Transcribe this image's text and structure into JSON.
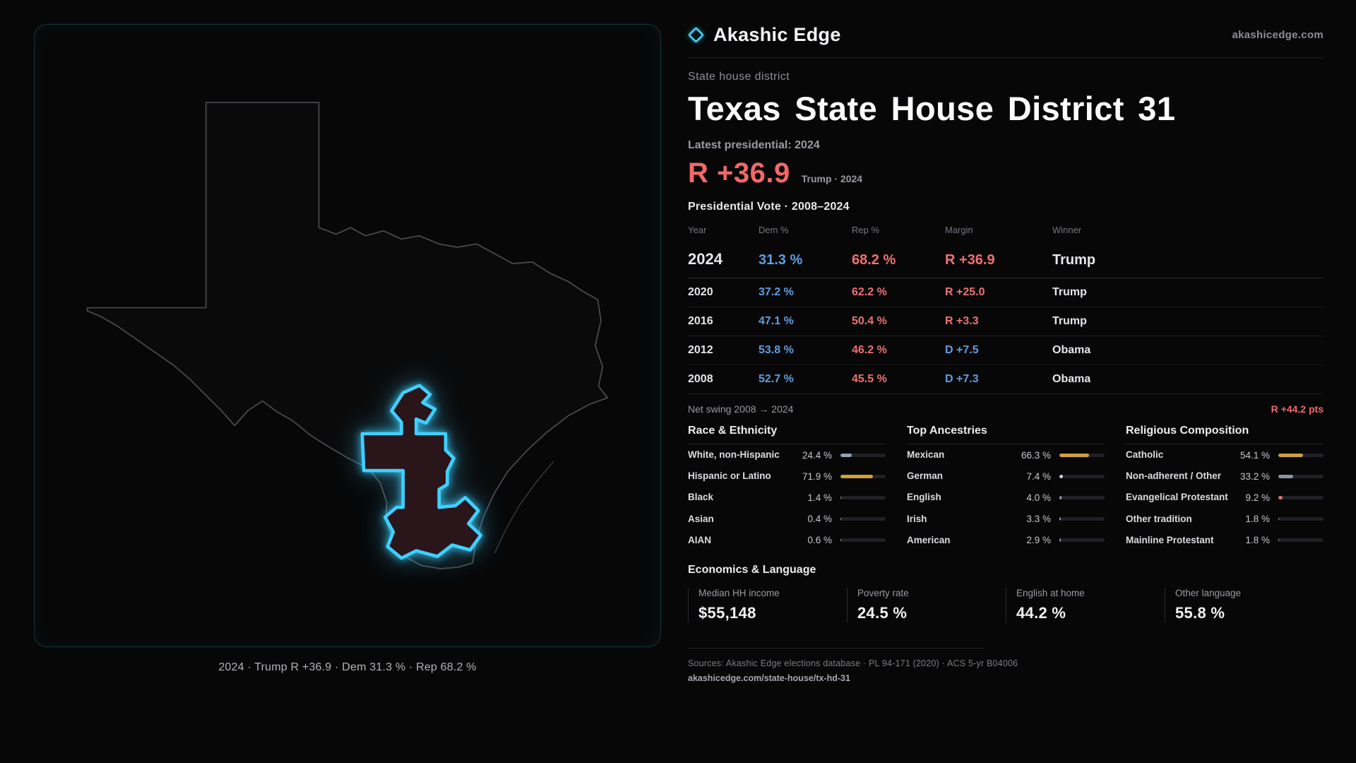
{
  "brand": {
    "name": "Akashic Edge",
    "domain": "akashicedge.com"
  },
  "accents": {
    "republican_red": "#f26868",
    "democrat_blue": "#5f9fe0",
    "district_cyan": "#3fd0ff",
    "bar_gold": "#cfa13b"
  },
  "map": {
    "caption": "2024 · Trump R +36.9 · Dem 31.3 % · Rep 68.2 %"
  },
  "page": {
    "kicker": "State house district",
    "title": "Texas State House District 31",
    "latest_label": "Latest presidential: 2024",
    "headline_margin": "R +36.9",
    "headline_context": "Trump · 2024",
    "table_title": "Presidential Vote · 2008–2024",
    "net_swing_label": "Net swing 2008 → 2024",
    "net_swing_value": "R +44.2 pts"
  },
  "vote_table": {
    "columns": [
      "Year",
      "Dem %",
      "Rep %",
      "Margin",
      "Winner"
    ],
    "rows": [
      {
        "year": "2024",
        "dem": "31.3 %",
        "rep": "68.2 %",
        "margin": "R +36.9",
        "winner": "Trump",
        "emphasis": true
      },
      {
        "year": "2020",
        "dem": "37.2 %",
        "rep": "62.2 %",
        "margin": "R +25.0",
        "winner": "Trump",
        "emphasis": false
      },
      {
        "year": "2016",
        "dem": "47.1 %",
        "rep": "50.4 %",
        "margin": "R +3.3",
        "winner": "Trump",
        "emphasis": false
      },
      {
        "year": "2012",
        "dem": "53.8 %",
        "rep": "46.2 %",
        "margin": "D +7.5",
        "winner": "Obama",
        "emphasis": false
      },
      {
        "year": "2008",
        "dem": "52.7 %",
        "rep": "45.5 %",
        "margin": "D +7.3",
        "winner": "Obama",
        "emphasis": false
      }
    ]
  },
  "demographics": [
    {
      "title": "Race & Ethnicity",
      "items": [
        {
          "label": "White, non-Hispanic",
          "value": "24.4 %",
          "pct": 24.4,
          "color": "#93a0b5"
        },
        {
          "label": "Hispanic or Latino",
          "value": "71.9 %",
          "pct": 71.9,
          "color": "#cfa13b"
        },
        {
          "label": "Black",
          "value": "1.4 %",
          "pct": 1.4,
          "color": "#9aa3b2"
        },
        {
          "label": "Asian",
          "value": "0.4 %",
          "pct": 0.4,
          "color": "#9aa3b2"
        },
        {
          "label": "AIAN",
          "value": "0.6 %",
          "pct": 0.6,
          "color": "#9aa3b2"
        }
      ]
    },
    {
      "title": "Top Ancestries",
      "items": [
        {
          "label": "Mexican",
          "value": "66.3 %",
          "pct": 66.3,
          "color": "#cfa13b"
        },
        {
          "label": "German",
          "value": "7.4 %",
          "pct": 7.4,
          "color": "#cfd3da"
        },
        {
          "label": "English",
          "value": "4.0 %",
          "pct": 4.0,
          "color": "#9aa3b2"
        },
        {
          "label": "Irish",
          "value": "3.3 %",
          "pct": 3.3,
          "color": "#9aa3b2"
        },
        {
          "label": "American",
          "value": "2.9 %",
          "pct": 2.9,
          "color": "#9aa3b2"
        }
      ]
    },
    {
      "title": "Religious Composition",
      "items": [
        {
          "label": "Catholic",
          "value": "54.1 %",
          "pct": 54.1,
          "color": "#cfa13b"
        },
        {
          "label": "Non-adherent / Other",
          "value": "33.2 %",
          "pct": 33.2,
          "color": "#8a93a2"
        },
        {
          "label": "Evangelical Protestant",
          "value": "9.2 %",
          "pct": 9.2,
          "color": "#e36d6d"
        },
        {
          "label": "Other tradition",
          "value": "1.8 %",
          "pct": 1.8,
          "color": "#9aa3b2"
        },
        {
          "label": "Mainline Protestant",
          "value": "1.8 %",
          "pct": 1.8,
          "color": "#9aa3b2"
        }
      ]
    }
  ],
  "economics": {
    "title": "Economics & Language",
    "stats": [
      {
        "label": "Median HH income",
        "value": "$55,148"
      },
      {
        "label": "Poverty rate",
        "value": "24.5 %"
      },
      {
        "label": "English at home",
        "value": "44.2 %"
      },
      {
        "label": "Other language",
        "value": "55.8 %"
      }
    ]
  },
  "footer": {
    "sources": "Sources: Akashic Edge elections database · PL 94-171 (2020) · ACS 5-yr B04006",
    "permalink": "akashicedge.com/state-house/tx-hd-31"
  }
}
